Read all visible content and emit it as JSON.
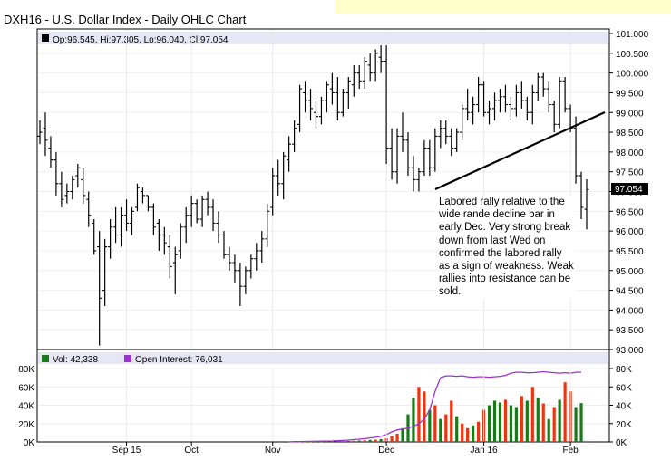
{
  "title": "DXH16 - U.S. Dollar Index - Daily OHLC Chart",
  "price_legend": "Op:96.545, Hi:97.305, Lo:96.040, Cl:97.054",
  "last_price_label": "97.054",
  "annotation": "Labored rally relative to the wide rande decline bar in early Dec.  Very strong break down from last Wed on confirmed the labored rally as a sign of weakness.  Weak rallies into resistance can be sold.",
  "colors": {
    "up_volume": "#1a7a1a",
    "down_volume": "#ee3311",
    "open_interest": "#9933cc",
    "price_bar": "#000000",
    "legend_bar": "#e6e6f5",
    "last_price_box": "#000000"
  },
  "chart_data": [
    {
      "type": "ohlc",
      "title": "DXH16 - U.S. Dollar Index - Daily OHLC Chart",
      "ylim": [
        93.0,
        101.0
      ],
      "y_ticks": [
        "93.000",
        "93.500",
        "94.000",
        "94.500",
        "95.000",
        "95.500",
        "96.000",
        "96.500",
        "97.000",
        "97.500",
        "98.000",
        "98.500",
        "99.000",
        "99.500",
        "100.000",
        "100.500",
        "101.000"
      ],
      "x_ticks": [
        "Sep 15",
        "Oct",
        "Nov",
        "Dec",
        "Jan 16",
        "Feb"
      ],
      "legend": [
        "Op:96.545, Hi:97.305, Lo:96.040, Cl:97.054"
      ],
      "last": {
        "open": 96.545,
        "high": 97.305,
        "low": 96.04,
        "close": 97.054
      },
      "bars": [
        [
          98.4,
          98.8,
          98.2,
          98.5
        ],
        [
          98.6,
          99.0,
          97.9,
          98.3
        ],
        [
          98.1,
          98.4,
          97.6,
          97.8
        ],
        [
          97.8,
          98.0,
          96.9,
          97.2
        ],
        [
          97.2,
          97.5,
          96.6,
          96.8
        ],
        [
          96.9,
          97.2,
          96.7,
          97.0
        ],
        [
          97.0,
          97.4,
          96.8,
          97.3
        ],
        [
          97.4,
          97.7,
          97.1,
          97.6
        ],
        [
          97.3,
          97.6,
          96.7,
          96.9
        ],
        [
          96.8,
          97.0,
          96.1,
          96.4
        ],
        [
          96.2,
          96.3,
          95.4,
          95.5
        ],
        [
          95.6,
          96.0,
          93.1,
          94.3
        ],
        [
          94.5,
          95.8,
          94.1,
          95.6
        ],
        [
          95.6,
          96.3,
          95.3,
          96.1
        ],
        [
          96.1,
          96.6,
          95.7,
          95.9
        ],
        [
          95.9,
          96.6,
          95.6,
          96.4
        ],
        [
          96.4,
          96.8,
          96.0,
          96.2
        ],
        [
          96.2,
          96.6,
          95.9,
          96.5
        ],
        [
          96.6,
          97.2,
          96.5,
          97.1
        ],
        [
          97.0,
          97.1,
          96.7,
          96.9
        ],
        [
          96.9,
          96.9,
          96.5,
          96.6
        ],
        [
          96.6,
          96.7,
          95.9,
          96.1
        ],
        [
          96.2,
          96.3,
          95.5,
          95.9
        ],
        [
          95.9,
          96.1,
          95.4,
          95.7
        ],
        [
          95.6,
          95.9,
          94.8,
          95.1
        ],
        [
          95.2,
          95.6,
          94.4,
          95.4
        ],
        [
          95.5,
          96.2,
          95.3,
          96.1
        ],
        [
          96.1,
          96.6,
          95.7,
          96.4
        ],
        [
          96.4,
          96.9,
          96.1,
          96.7
        ],
        [
          96.7,
          96.8,
          96.2,
          96.3
        ],
        [
          96.3,
          96.9,
          96.1,
          96.8
        ],
        [
          96.8,
          97.0,
          96.4,
          96.6
        ],
        [
          96.6,
          96.8,
          96.0,
          96.2
        ],
        [
          96.2,
          96.5,
          95.7,
          95.9
        ],
        [
          95.9,
          96.0,
          95.3,
          95.4
        ],
        [
          95.4,
          95.6,
          95.0,
          95.2
        ],
        [
          95.2,
          95.4,
          94.7,
          95.0
        ],
        [
          95.0,
          95.2,
          94.1,
          94.6
        ],
        [
          94.6,
          95.1,
          94.4,
          95.0
        ],
        [
          95.0,
          95.4,
          94.8,
          95.3
        ],
        [
          95.3,
          95.7,
          95.0,
          95.5
        ],
        [
          95.5,
          96.0,
          95.2,
          95.8
        ],
        [
          95.8,
          96.7,
          95.6,
          96.5
        ],
        [
          96.6,
          97.6,
          96.4,
          97.4
        ],
        [
          97.4,
          97.8,
          96.9,
          97.2
        ],
        [
          97.2,
          98.0,
          96.8,
          97.9
        ],
        [
          97.8,
          98.4,
          97.5,
          98.2
        ],
        [
          98.2,
          98.8,
          98.0,
          98.6
        ],
        [
          98.7,
          99.7,
          98.5,
          99.6
        ],
        [
          99.5,
          99.8,
          99.0,
          99.3
        ],
        [
          99.3,
          99.6,
          98.8,
          99.1
        ],
        [
          99.0,
          99.3,
          98.6,
          98.9
        ],
        [
          98.9,
          99.4,
          98.7,
          99.3
        ],
        [
          99.3,
          99.8,
          99.0,
          99.7
        ],
        [
          99.6,
          100.0,
          99.2,
          99.5
        ],
        [
          99.5,
          99.9,
          98.8,
          99.0
        ],
        [
          99.0,
          99.6,
          98.9,
          99.5
        ],
        [
          99.5,
          99.9,
          99.1,
          99.8
        ],
        [
          99.7,
          100.2,
          99.4,
          100.0
        ],
        [
          100.0,
          100.2,
          99.6,
          99.8
        ],
        [
          99.8,
          100.4,
          99.6,
          100.3
        ],
        [
          100.2,
          100.5,
          99.8,
          100.0
        ],
        [
          100.0,
          100.6,
          99.8,
          100.5
        ],
        [
          100.4,
          100.7,
          100.0,
          100.3
        ],
        [
          100.3,
          100.7,
          97.7,
          98.1
        ],
        [
          98.1,
          98.6,
          97.3,
          97.5
        ],
        [
          97.5,
          98.6,
          97.2,
          98.4
        ],
        [
          98.4,
          99.0,
          98.0,
          98.3
        ],
        [
          98.3,
          98.5,
          97.4,
          97.6
        ],
        [
          97.6,
          97.9,
          97.0,
          97.3
        ],
        [
          97.3,
          97.6,
          97.0,
          97.5
        ],
        [
          97.5,
          98.3,
          97.4,
          98.1
        ],
        [
          98.1,
          98.3,
          97.4,
          97.6
        ],
        [
          97.6,
          98.6,
          97.5,
          98.4
        ],
        [
          98.4,
          98.8,
          98.1,
          98.6
        ],
        [
          98.6,
          98.8,
          98.2,
          98.4
        ],
        [
          98.4,
          98.6,
          97.9,
          98.1
        ],
        [
          98.1,
          98.6,
          98.0,
          98.5
        ],
        [
          98.5,
          99.2,
          98.3,
          99.1
        ],
        [
          99.1,
          99.6,
          98.8,
          99.0
        ],
        [
          99.0,
          99.4,
          98.7,
          99.2
        ],
        [
          99.2,
          99.9,
          99.0,
          99.7
        ],
        [
          99.7,
          99.8,
          98.9,
          99.0
        ],
        [
          99.0,
          99.3,
          98.7,
          99.1
        ],
        [
          99.1,
          99.5,
          98.8,
          99.3
        ],
        [
          99.3,
          99.6,
          99.0,
          99.4
        ],
        [
          99.4,
          99.7,
          99.0,
          99.2
        ],
        [
          99.2,
          99.4,
          98.8,
          99.1
        ],
        [
          99.1,
          99.7,
          98.9,
          99.5
        ],
        [
          99.5,
          99.8,
          99.1,
          99.3
        ],
        [
          99.3,
          99.4,
          98.8,
          99.0
        ],
        [
          99.0,
          99.7,
          98.7,
          99.5
        ],
        [
          99.5,
          100.0,
          99.3,
          99.9
        ],
        [
          99.9,
          100.0,
          99.4,
          99.6
        ],
        [
          99.6,
          99.8,
          99.0,
          99.2
        ],
        [
          99.2,
          99.3,
          98.5,
          98.7
        ],
        [
          98.7,
          99.9,
          98.6,
          99.8
        ],
        [
          99.8,
          99.9,
          99.0,
          99.1
        ],
        [
          99.1,
          99.2,
          98.5,
          98.6
        ],
        [
          98.6,
          98.9,
          97.2,
          97.4
        ],
        [
          97.4,
          97.5,
          96.3,
          96.6
        ],
        [
          96.55,
          97.31,
          96.04,
          97.05
        ]
      ]
    },
    {
      "type": "bar",
      "title": "",
      "ylim": [
        0,
        80000
      ],
      "y_ticks": [
        "0K",
        "20K",
        "40K",
        "60K",
        "80K"
      ],
      "legend": [
        "Vol: 42,338",
        "Open Interest: 76,031"
      ],
      "series": [
        {
          "name": "Vol",
          "last": 42338,
          "values": [
            0,
            0,
            0,
            0,
            0,
            0,
            0,
            0,
            0,
            0,
            0,
            0,
            0,
            0,
            0,
            0,
            0,
            0,
            0,
            0,
            0,
            0,
            0,
            0,
            0,
            0,
            0,
            0,
            0,
            0,
            0,
            0,
            0,
            0,
            0,
            0,
            0,
            0,
            0,
            0,
            0,
            0,
            0,
            0,
            0,
            0,
            0,
            300,
            300,
            400,
            400,
            500,
            500,
            600,
            700,
            800,
            900,
            1000,
            1200,
            1500,
            1800,
            2200,
            2500,
            3000,
            4000,
            6000,
            9000,
            15000,
            30000,
            48000,
            60000,
            55000,
            35000,
            40000,
            25000,
            30000,
            45000,
            28000,
            20000,
            15000,
            18000,
            22000,
            35000,
            40000,
            45000,
            43000,
            46000,
            40000,
            38000,
            50000,
            45000,
            60000,
            48000,
            42000,
            25000,
            38000,
            46000,
            65000,
            55000,
            38000,
            42338
          ]
        },
        {
          "name": "Open Interest",
          "last": 76031,
          "values": [
            0,
            0,
            0,
            0,
            0,
            0,
            0,
            0,
            0,
            0,
            0,
            0,
            0,
            0,
            0,
            0,
            0,
            0,
            0,
            0,
            0,
            0,
            0,
            0,
            0,
            0,
            0,
            0,
            0,
            0,
            0,
            0,
            0,
            0,
            0,
            0,
            0,
            0,
            0,
            0,
            0,
            0,
            0,
            0,
            0,
            0,
            0,
            300,
            400,
            500,
            600,
            700,
            800,
            900,
            1000,
            1300,
            1600,
            2000,
            2500,
            3000,
            3600,
            4300,
            5000,
            6000,
            8000,
            11000,
            13000,
            14000,
            15000,
            17000,
            20000,
            25000,
            35000,
            55000,
            70000,
            72000,
            72000,
            71500,
            72000,
            71000,
            70500,
            71000,
            71000,
            70500,
            71000,
            71500,
            72500,
            75000,
            76000,
            76000,
            75500,
            75500,
            76000,
            76500,
            76000,
            75500,
            75000,
            75500,
            75000,
            76000,
            76031
          ]
        }
      ],
      "bar_colors": [
        "d",
        "d",
        "d",
        "d",
        "d",
        "d",
        "d",
        "d",
        "d",
        "d",
        "d",
        "d",
        "d",
        "d",
        "d",
        "d",
        "d",
        "d",
        "d",
        "d",
        "d",
        "d",
        "d",
        "d",
        "d",
        "d",
        "d",
        "d",
        "d",
        "d",
        "d",
        "d",
        "d",
        "d",
        "d",
        "d",
        "d",
        "d",
        "d",
        "d",
        "d",
        "d",
        "d",
        "d",
        "d",
        "d",
        "d",
        "u",
        "d",
        "u",
        "d",
        "u",
        "d",
        "u",
        "d",
        "u",
        "d",
        "u",
        "d",
        "u",
        "d",
        "u",
        "d",
        "u",
        "d",
        "d",
        "d",
        "u",
        "u",
        "u",
        "d",
        "d",
        "u",
        "d",
        "u",
        "d",
        "d",
        "u",
        "d",
        "d",
        "u",
        "d",
        "d",
        "u",
        "u",
        "u",
        "d",
        "u",
        "u",
        "d",
        "u",
        "d",
        "u",
        "d",
        "u",
        "d",
        "u",
        "d",
        "d",
        "u",
        "u"
      ]
    }
  ]
}
